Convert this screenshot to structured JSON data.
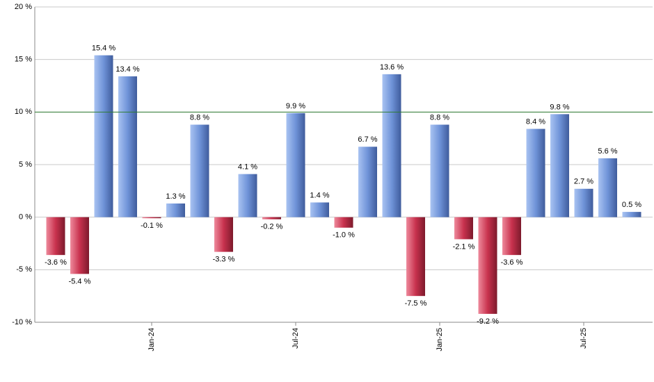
{
  "chart_data": {
    "type": "bar",
    "categories": [
      null,
      null,
      null,
      null,
      "Jan-24",
      null,
      null,
      null,
      null,
      null,
      "Jul-24",
      null,
      null,
      null,
      null,
      null,
      "Jan-25",
      null,
      null,
      null,
      null,
      null,
      "Jul-25",
      null,
      null
    ],
    "values": [
      -3.6,
      -5.4,
      15.4,
      13.4,
      -0.1,
      1.3,
      8.8,
      -3.3,
      4.1,
      -0.2,
      9.9,
      1.4,
      -1.0,
      6.7,
      13.6,
      -7.5,
      8.8,
      -2.1,
      -9.2,
      -3.6,
      8.4,
      9.8,
      2.7,
      5.6,
      0.5
    ],
    "value_labels": [
      "-3.6 %",
      "-5.4 %",
      "15.4 %",
      "13.4 %",
      "-0.1 %",
      "1.3 %",
      "8.8 %",
      "-3.3 %",
      "4.1 %",
      "-0.2 %",
      "9.9 %",
      "1.4 %",
      "-1.0 %",
      "6.7 %",
      "13.6 %",
      "-7.5 %",
      "8.8 %",
      "-2.1 %",
      "-9.2 %",
      "-3.6 %",
      "8.4 %",
      "9.8 %",
      "2.7 %",
      "5.6 %",
      "0.5 %"
    ],
    "positive_color": "#6f93d8",
    "negative_color": "#c8324e",
    "ylim": [
      -10,
      20
    ],
    "yticks": [
      {
        "value": -10,
        "label": "-10 %"
      },
      {
        "value": -5,
        "label": "-5 %"
      },
      {
        "value": 0,
        "label": "0 %"
      },
      {
        "value": 5,
        "label": "5 %"
      },
      {
        "value": 10,
        "label": "10 %"
      },
      {
        "value": 15,
        "label": "15 %"
      },
      {
        "value": 20,
        "label": "20 %"
      }
    ],
    "grid": true,
    "reference_line": {
      "value": 10,
      "color": "#2e7d32"
    }
  }
}
